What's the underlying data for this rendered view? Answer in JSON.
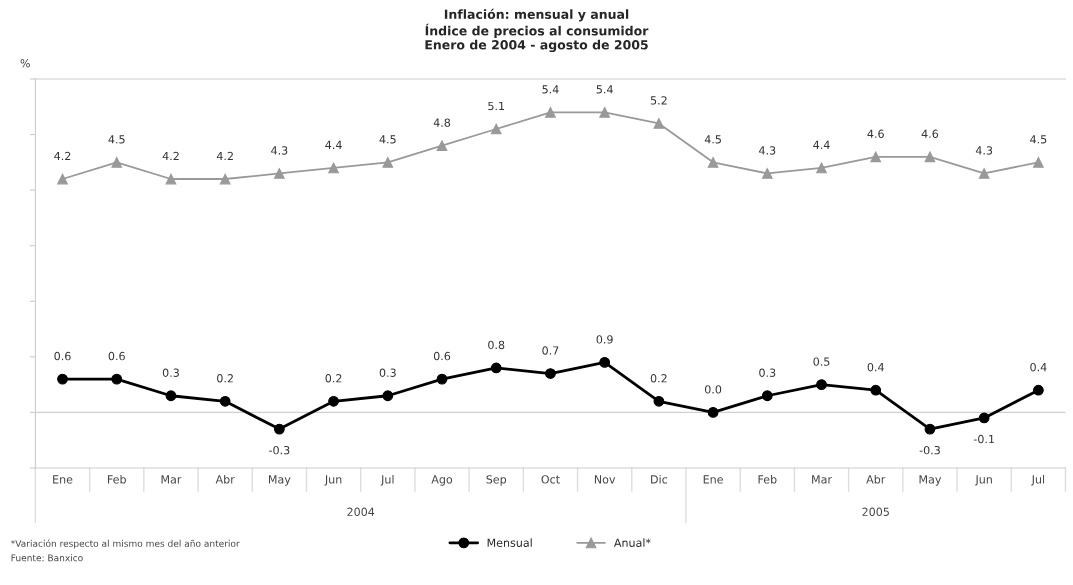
{
  "chart_data": {
    "type": "line",
    "title": "Inflación: mensual y anual\nÍndice de precios al consumidor\nEnero de 2004 - agosto de 2005",
    "ylabel": "%",
    "categories": [
      "Ene",
      "Feb",
      "Mar",
      "Abr",
      "May",
      "Jun",
      "Jul",
      "Ago",
      "Sep",
      "Oct",
      "Nov",
      "Dic",
      "Ene",
      "Feb",
      "Mar",
      "Abr",
      "May",
      "Jun",
      "Jul"
    ],
    "series": [
      {
        "name": "Mensual",
        "color": "#000000",
        "marker": "circle",
        "values": [
          0.6,
          0.6,
          0.3,
          0.2,
          -0.3,
          0.2,
          0.3,
          0.6,
          0.8,
          0.7,
          0.9,
          0.2,
          0.0,
          0.3,
          0.5,
          0.4,
          -0.3,
          -0.1,
          0.4
        ],
        "value_labels": [
          "0.6",
          "0.6",
          "0.3",
          "0.2",
          "-0.3",
          "0.2",
          "0.3",
          "0.6",
          "0.8",
          "0.7",
          "0.9",
          "0.2",
          "0.0",
          "0.3",
          "0.5",
          "0.4",
          "-0.3",
          "-0.1",
          "0.4"
        ]
      },
      {
        "name": "Anual*",
        "color": "#999999",
        "marker": "triangle",
        "values": [
          4.2,
          4.5,
          4.2,
          4.2,
          4.3,
          4.4,
          4.5,
          4.8,
          5.1,
          5.4,
          5.4,
          5.2,
          4.5,
          4.3,
          4.4,
          4.6,
          4.6,
          4.3,
          4.5
        ],
        "value_labels": [
          "4.2",
          "4.5",
          "4.2",
          "4.2",
          "4.3",
          "4.4",
          "4.5",
          "4.8",
          "5.1",
          "5.4",
          "5.4",
          "5.2",
          "4.5",
          "4.3",
          "4.4",
          "4.6",
          "4.6",
          "4.3",
          "4.5"
        ]
      }
    ],
    "ylim": [
      -1,
      6
    ],
    "yticks": [
      {
        "value": -1,
        "label": null
      },
      {
        "value": 0,
        "label": null
      },
      {
        "value": 1,
        "label": null
      },
      {
        "value": 2,
        "label": null
      },
      {
        "value": 3,
        "label": null
      },
      {
        "value": 4,
        "label": null
      },
      {
        "value": 5,
        "label": null
      },
      {
        "value": 6,
        "label": null
      }
    ],
    "ref_lines": [
      {
        "axis": "y",
        "value": 0,
        "color": "#d0d0d0"
      }
    ],
    "legend": "bottom",
    "tick_labels": "x",
    "annotations": [
      "2004",
      "2005",
      "*Variación respecto al mismo mes del año anterior",
      "Fuente: Banxico"
    ]
  }
}
